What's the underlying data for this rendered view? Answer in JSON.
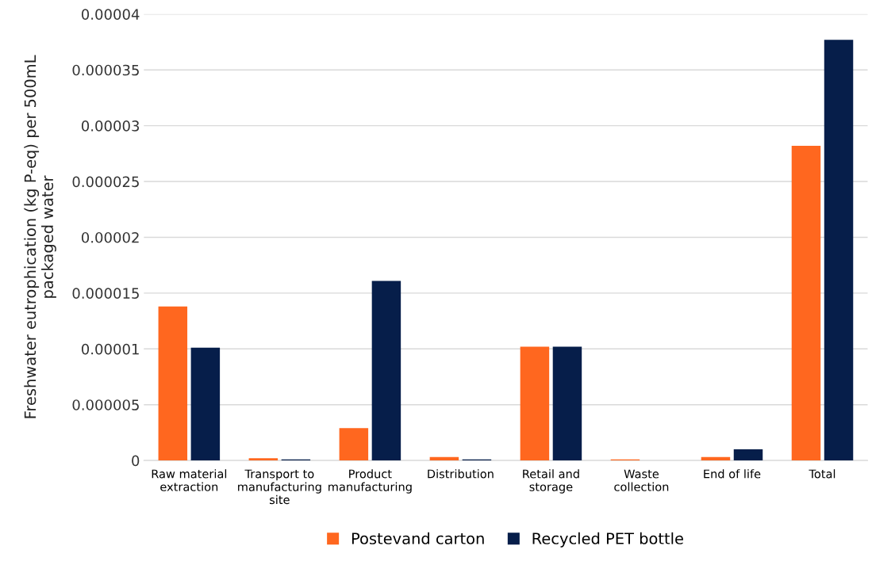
{
  "chart_data": {
    "type": "bar",
    "ylabel": "Freshwater eutrophication (kg P-eq) per 500mL\npackaged water",
    "categories": [
      "Raw material\nextraction",
      "Transport to\nmanufacturing\nsite",
      "Product\nmanufacturing",
      "Distribution",
      "Retail and\nstorage",
      "Waste\ncollection",
      "End of life",
      "Total"
    ],
    "series": [
      {
        "name": "Postevand carton",
        "color": "#ff671f",
        "values": [
          1.38e-05,
          2e-07,
          2.9e-06,
          3e-07,
          1.02e-05,
          1e-07,
          3e-07,
          2.82e-05
        ]
      },
      {
        "name": "Recycled PET bottle",
        "color": "#061e4a",
        "values": [
          1.01e-05,
          1e-07,
          1.61e-05,
          1e-07,
          1.02e-05,
          0.0,
          1e-06,
          3.77e-05
        ]
      }
    ],
    "ylim": [
      0,
      4e-05
    ],
    "yticks": [
      0,
      {
        "value": 5e-06,
        "label": "0.000005"
      },
      {
        "value": 1e-05,
        "label": "0.00001"
      },
      {
        "value": 1.5e-05,
        "label": "0.000015"
      },
      {
        "value": 2e-05,
        "label": "0.00002"
      },
      {
        "value": 2.5e-05,
        "label": "0.000025"
      },
      {
        "value": 3e-05,
        "label": "0.00003"
      },
      {
        "value": 3.5e-05,
        "label": "0.000035"
      },
      {
        "value": 4e-05,
        "label": "0.00004"
      }
    ],
    "grid": "y",
    "legend": "bottom"
  }
}
